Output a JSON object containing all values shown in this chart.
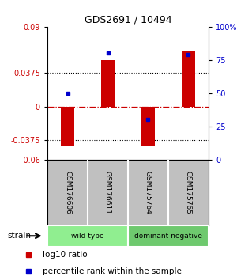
{
  "title": "GDS2691 / 10494",
  "samples": [
    "GSM176606",
    "GSM176611",
    "GSM175764",
    "GSM175765"
  ],
  "log10_ratio": [
    -0.044,
    0.052,
    -0.045,
    0.063
  ],
  "percentile_rank": [
    50,
    80,
    30,
    79
  ],
  "groups": [
    {
      "label": "wild type",
      "color": "#90EE90",
      "span": [
        0,
        2
      ]
    },
    {
      "label": "dominant negative",
      "color": "#6EC96E",
      "span": [
        2,
        4
      ]
    }
  ],
  "ylim_left": [
    -0.06,
    0.09
  ],
  "ylim_right": [
    0,
    100
  ],
  "yticks_left": [
    -0.06,
    -0.0375,
    0,
    0.0375,
    0.09
  ],
  "ytick_left_labels": [
    "-0.06",
    "-0.0375",
    "0",
    "0.0375",
    "0.09"
  ],
  "yticks_right": [
    0,
    25,
    50,
    75,
    100
  ],
  "ytick_right_labels": [
    "0",
    "25",
    "50",
    "75",
    "100%"
  ],
  "hlines": [
    0.0375,
    -0.0375
  ],
  "bar_color": "#CC0000",
  "blue_color": "#0000CC",
  "zero_line_color": "#CC0000",
  "strain_label": "strain",
  "bar_width": 0.35,
  "sample_box_color": "#C0C0C0",
  "figure_width": 3.0,
  "figure_height": 3.54,
  "dpi": 100
}
